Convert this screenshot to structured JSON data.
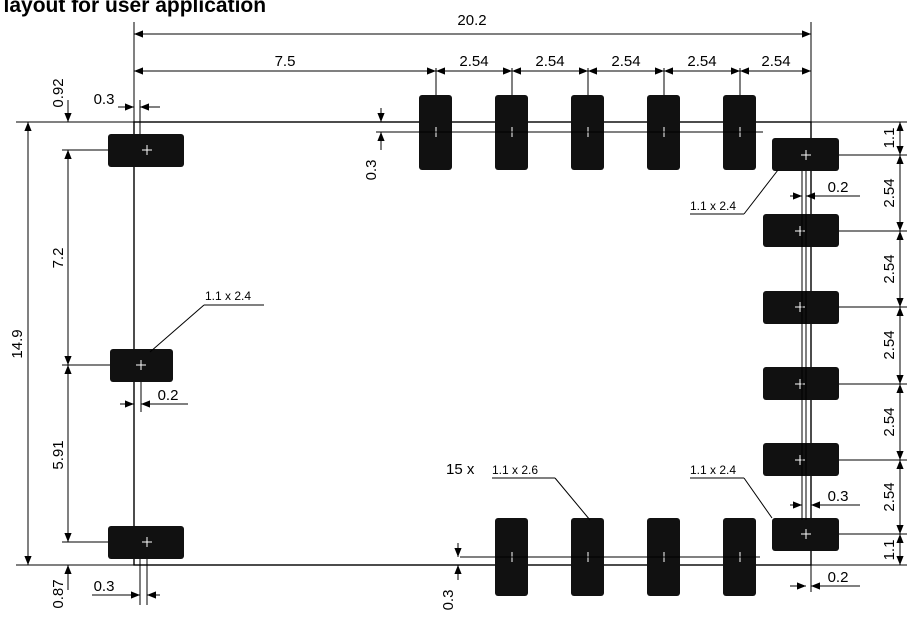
{
  "title": "s layout for user application",
  "colors": {
    "pad": "#111111",
    "line": "#000000",
    "background": "#ffffff"
  },
  "dimensions": {
    "total_width": "20.2",
    "left_offset": "7.5",
    "pitch_top": [
      "2.54",
      "2.54",
      "2.54",
      "2.54",
      "2.54"
    ],
    "left_clearance_top": "0.3",
    "left_top_offset": "0.92",
    "left_mid_span": "7.2",
    "left_low_span": "5.91",
    "left_bottom_offset": "0.87",
    "total_height": "14.9",
    "left_clearance_bottom": "0.3",
    "left_mid_clearance": "0.2",
    "top_pad_clearance": "0.3",
    "bottom_pad_clearance": "0.3",
    "right_top_offset": "1.1",
    "pitch_right": [
      "2.54",
      "2.54",
      "2.54",
      "2.54",
      "2.54"
    ],
    "right_bottom_offset": "1.1",
    "right_clearance_top": "0.2",
    "right_clearance_low": "0.3",
    "right_clearance_bottom": "0.2"
  },
  "callouts": {
    "left_pad_size": "1.1 x 2.4",
    "right_top_pad_size": "1.1 x 2.4",
    "right_bottom_pad_size": "1.1 x 2.4",
    "bottom_pad_count": "15 x",
    "bottom_pad_size": "1.1 x 2.6"
  }
}
